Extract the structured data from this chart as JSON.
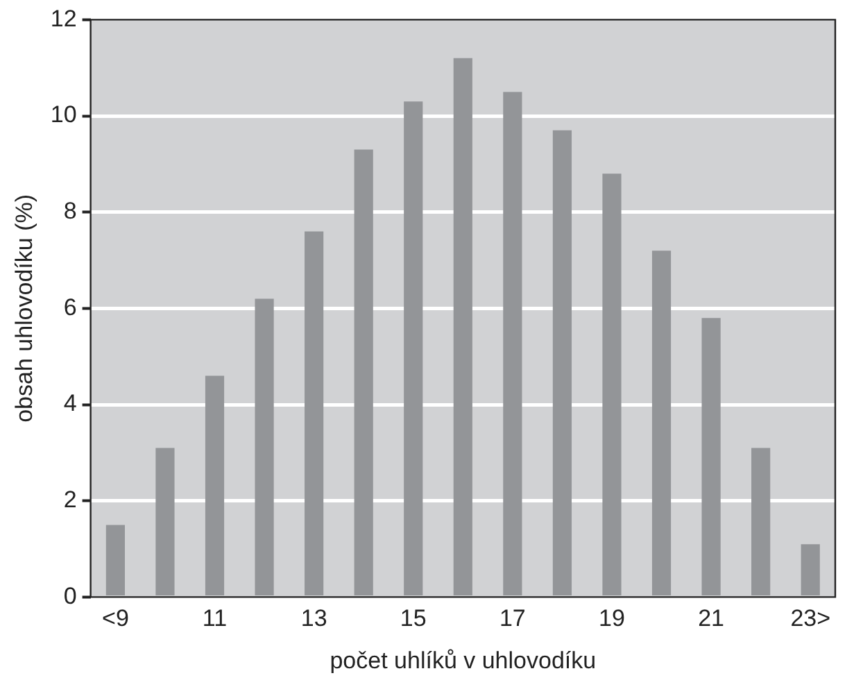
{
  "chart_data": {
    "type": "bar",
    "xlabel": "počet uhlíků v uhlovodíku",
    "ylabel": "obsah uhlovodíku (%)",
    "categories": [
      "<9",
      null,
      "11",
      null,
      "13",
      null,
      "15",
      null,
      "17",
      null,
      "19",
      null,
      "21",
      null,
      "23>"
    ],
    "values": [
      1.5,
      3.1,
      4.6,
      6.2,
      7.6,
      9.3,
      10.3,
      11.2,
      10.5,
      9.7,
      8.8,
      7.2,
      5.8,
      3.1,
      1.1
    ],
    "color": "#939598",
    "ylim": [
      0,
      12
    ],
    "yticks": [
      0,
      2,
      4,
      6,
      8,
      10,
      12
    ],
    "grid": "y",
    "legend": false
  }
}
